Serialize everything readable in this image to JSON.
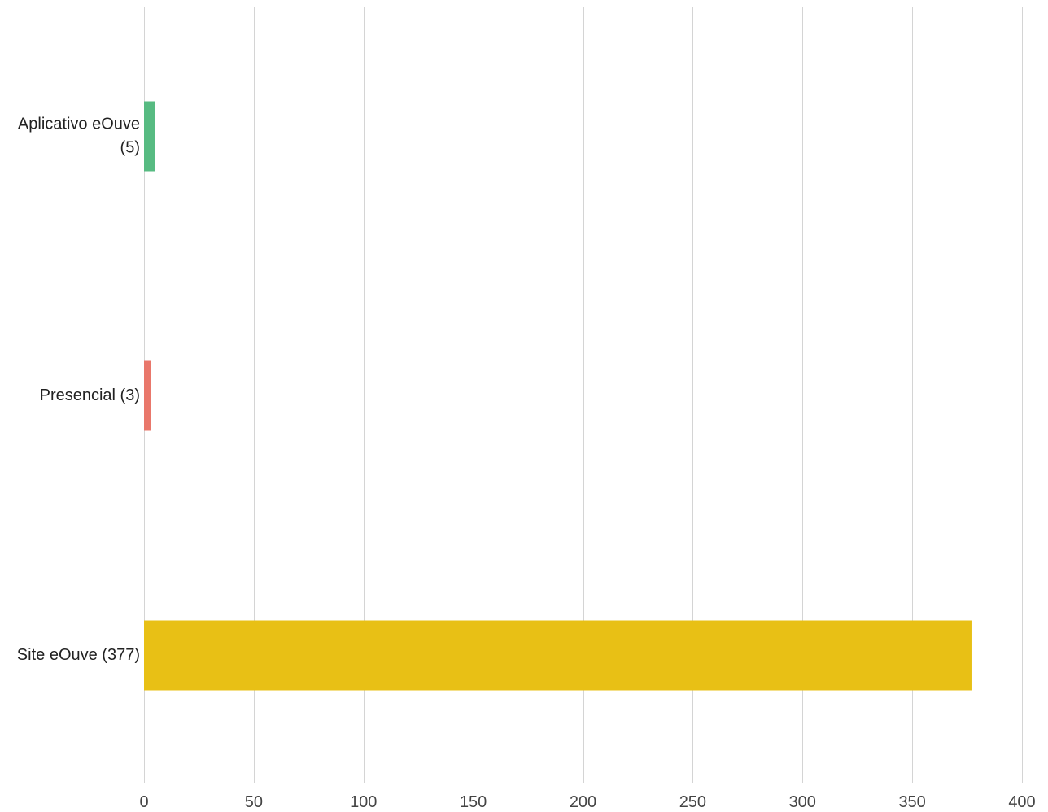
{
  "chart_data": {
    "type": "bar",
    "orientation": "horizontal",
    "categories": [
      "Aplicativo eOuve (5)",
      "Presencial (3)",
      "Site eOuve (377)"
    ],
    "category_label_lines": [
      [
        "Aplicativo eOuve",
        "(5)"
      ],
      [
        "Presencial (3)"
      ],
      [
        "Site eOuve (377)"
      ]
    ],
    "values": [
      5,
      3,
      377
    ],
    "colors": [
      "#57bb82",
      "#e9776b",
      "#e8c015"
    ],
    "xlim": [
      0,
      400
    ],
    "x_ticks": [
      0,
      50,
      100,
      150,
      200,
      250,
      300,
      350,
      400
    ],
    "grid": true,
    "legend": "none",
    "title": "",
    "xlabel": "",
    "ylabel": ""
  }
}
